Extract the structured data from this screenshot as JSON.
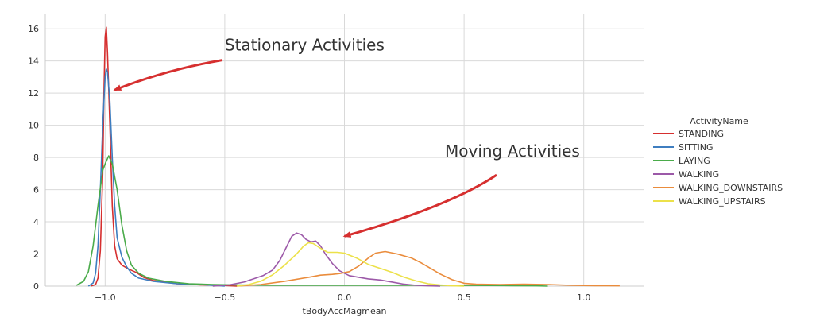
{
  "chart_data": {
    "type": "line",
    "xlabel": "tBodyAccMagmean",
    "ylabel": "",
    "xlim": [
      -1.25,
      1.25
    ],
    "ylim": [
      0,
      16.9
    ],
    "x_ticks": [
      -1.0,
      -0.5,
      0.0,
      0.5,
      1.0
    ],
    "x_tick_labels": [
      "−1.0",
      "−0.5",
      "0.0",
      "0.5",
      "1.0"
    ],
    "y_ticks": [
      0,
      2,
      4,
      6,
      8,
      10,
      12,
      14,
      16
    ],
    "y_tick_labels": [
      "0",
      "2",
      "4",
      "6",
      "8",
      "10",
      "12",
      "14",
      "16"
    ],
    "grid": true,
    "legend": {
      "title": "ActivityName",
      "placement": "right"
    },
    "annotations": [
      {
        "text": "Stationary Activities",
        "text_x": -0.5,
        "text_y": 14.6,
        "arrow_to_x": -0.96,
        "arrow_to_y": 12.2
      },
      {
        "text": "Moving Activities",
        "text_x": 0.42,
        "text_y": 8.0,
        "arrow_to_x": 0.0,
        "arrow_to_y": 3.1
      }
    ],
    "series": [
      {
        "name": "STANDING",
        "color": "#d62f2f",
        "points": [
          [
            -1.06,
            0
          ],
          [
            -1.04,
            0.1
          ],
          [
            -1.03,
            0.5
          ],
          [
            -1.02,
            2.2
          ],
          [
            -1.01,
            7.0
          ],
          [
            -1.005,
            12.0
          ],
          [
            -1.0,
            15.5
          ],
          [
            -0.995,
            16.1
          ],
          [
            -0.99,
            14.5
          ],
          [
            -0.98,
            10.0
          ],
          [
            -0.97,
            5.0
          ],
          [
            -0.96,
            2.5
          ],
          [
            -0.95,
            1.7
          ],
          [
            -0.93,
            1.3
          ],
          [
            -0.9,
            1.05
          ],
          [
            -0.87,
            0.85
          ],
          [
            -0.84,
            0.55
          ],
          [
            -0.8,
            0.35
          ],
          [
            -0.75,
            0.25
          ],
          [
            -0.7,
            0.15
          ],
          [
            -0.6,
            0.08
          ],
          [
            -0.5,
            0.04
          ],
          [
            -0.45,
            0.0
          ]
        ]
      },
      {
        "name": "SITTING",
        "color": "#3f7ec0",
        "points": [
          [
            -1.07,
            0
          ],
          [
            -1.05,
            0.2
          ],
          [
            -1.04,
            0.8
          ],
          [
            -1.03,
            2.5
          ],
          [
            -1.02,
            6.0
          ],
          [
            -1.01,
            10.0
          ],
          [
            -1.0,
            13.0
          ],
          [
            -0.995,
            13.5
          ],
          [
            -0.99,
            13.3
          ],
          [
            -0.98,
            11.5
          ],
          [
            -0.97,
            8.0
          ],
          [
            -0.96,
            5.0
          ],
          [
            -0.95,
            3.0
          ],
          [
            -0.93,
            1.8
          ],
          [
            -0.91,
            1.2
          ],
          [
            -0.89,
            0.8
          ],
          [
            -0.86,
            0.5
          ],
          [
            -0.8,
            0.3
          ],
          [
            -0.7,
            0.15
          ],
          [
            -0.6,
            0.1
          ],
          [
            -0.55,
            0.05
          ],
          [
            -0.5,
            0.0
          ]
        ]
      },
      {
        "name": "LAYING",
        "color": "#4aab4a",
        "points": [
          [
            -1.12,
            0.05
          ],
          [
            -1.09,
            0.3
          ],
          [
            -1.07,
            0.9
          ],
          [
            -1.05,
            2.5
          ],
          [
            -1.03,
            5.0
          ],
          [
            -1.01,
            7.2
          ],
          [
            -1.0,
            7.6
          ],
          [
            -0.985,
            8.1
          ],
          [
            -0.97,
            7.6
          ],
          [
            -0.95,
            6.0
          ],
          [
            -0.93,
            3.8
          ],
          [
            -0.91,
            2.2
          ],
          [
            -0.89,
            1.3
          ],
          [
            -0.86,
            0.8
          ],
          [
            -0.82,
            0.5
          ],
          [
            -0.75,
            0.3
          ],
          [
            -0.65,
            0.15
          ],
          [
            -0.55,
            0.1
          ],
          [
            -0.45,
            0.07
          ],
          [
            -0.3,
            0.05
          ],
          [
            0.0,
            0.05
          ],
          [
            0.2,
            0.05
          ],
          [
            0.4,
            0.05
          ],
          [
            0.6,
            0.04
          ],
          [
            0.7,
            0.03
          ],
          [
            0.8,
            0.02
          ],
          [
            0.85,
            0.0
          ]
        ]
      },
      {
        "name": "WALKING",
        "color": "#9c59a8",
        "points": [
          [
            -0.55,
            0.0
          ],
          [
            -0.48,
            0.08
          ],
          [
            -0.42,
            0.25
          ],
          [
            -0.38,
            0.45
          ],
          [
            -0.34,
            0.65
          ],
          [
            -0.3,
            1.0
          ],
          [
            -0.27,
            1.6
          ],
          [
            -0.24,
            2.5
          ],
          [
            -0.22,
            3.1
          ],
          [
            -0.2,
            3.3
          ],
          [
            -0.18,
            3.2
          ],
          [
            -0.16,
            2.9
          ],
          [
            -0.14,
            2.75
          ],
          [
            -0.12,
            2.8
          ],
          [
            -0.1,
            2.5
          ],
          [
            -0.08,
            2.0
          ],
          [
            -0.05,
            1.4
          ],
          [
            -0.02,
            0.95
          ],
          [
            0.02,
            0.65
          ],
          [
            0.06,
            0.55
          ],
          [
            0.1,
            0.45
          ],
          [
            0.15,
            0.38
          ],
          [
            0.2,
            0.25
          ],
          [
            0.25,
            0.12
          ],
          [
            0.3,
            0.05
          ],
          [
            0.35,
            0.02
          ],
          [
            0.4,
            0.0
          ]
        ]
      },
      {
        "name": "WALKING_DOWNSTAIRS",
        "color": "#ea8c3c",
        "points": [
          [
            -0.45,
            0.0
          ],
          [
            -0.35,
            0.1
          ],
          [
            -0.25,
            0.3
          ],
          [
            -0.15,
            0.55
          ],
          [
            -0.1,
            0.68
          ],
          [
            -0.05,
            0.73
          ],
          [
            -0.02,
            0.78
          ],
          [
            0.02,
            0.9
          ],
          [
            0.06,
            1.25
          ],
          [
            0.1,
            1.75
          ],
          [
            0.13,
            2.05
          ],
          [
            0.17,
            2.15
          ],
          [
            0.22,
            2.0
          ],
          [
            0.28,
            1.75
          ],
          [
            0.32,
            1.45
          ],
          [
            0.36,
            1.1
          ],
          [
            0.4,
            0.75
          ],
          [
            0.45,
            0.4
          ],
          [
            0.5,
            0.18
          ],
          [
            0.55,
            0.12
          ],
          [
            0.65,
            0.1
          ],
          [
            0.75,
            0.12
          ],
          [
            0.85,
            0.1
          ],
          [
            0.95,
            0.05
          ],
          [
            1.05,
            0.03
          ],
          [
            1.15,
            0.02
          ]
        ]
      },
      {
        "name": "WALKING_UPSTAIRS",
        "color": "#ece14a",
        "points": [
          [
            -0.45,
            0.0
          ],
          [
            -0.4,
            0.1
          ],
          [
            -0.35,
            0.3
          ],
          [
            -0.3,
            0.7
          ],
          [
            -0.25,
            1.3
          ],
          [
            -0.2,
            2.0
          ],
          [
            -0.17,
            2.5
          ],
          [
            -0.15,
            2.7
          ],
          [
            -0.13,
            2.65
          ],
          [
            -0.1,
            2.35
          ],
          [
            -0.07,
            2.1
          ],
          [
            -0.03,
            2.1
          ],
          [
            0.0,
            2.05
          ],
          [
            0.05,
            1.75
          ],
          [
            0.1,
            1.35
          ],
          [
            0.15,
            1.1
          ],
          [
            0.2,
            0.85
          ],
          [
            0.25,
            0.55
          ],
          [
            0.3,
            0.32
          ],
          [
            0.35,
            0.15
          ],
          [
            0.4,
            0.07
          ],
          [
            0.45,
            0.02
          ],
          [
            0.5,
            0.0
          ]
        ]
      }
    ]
  }
}
